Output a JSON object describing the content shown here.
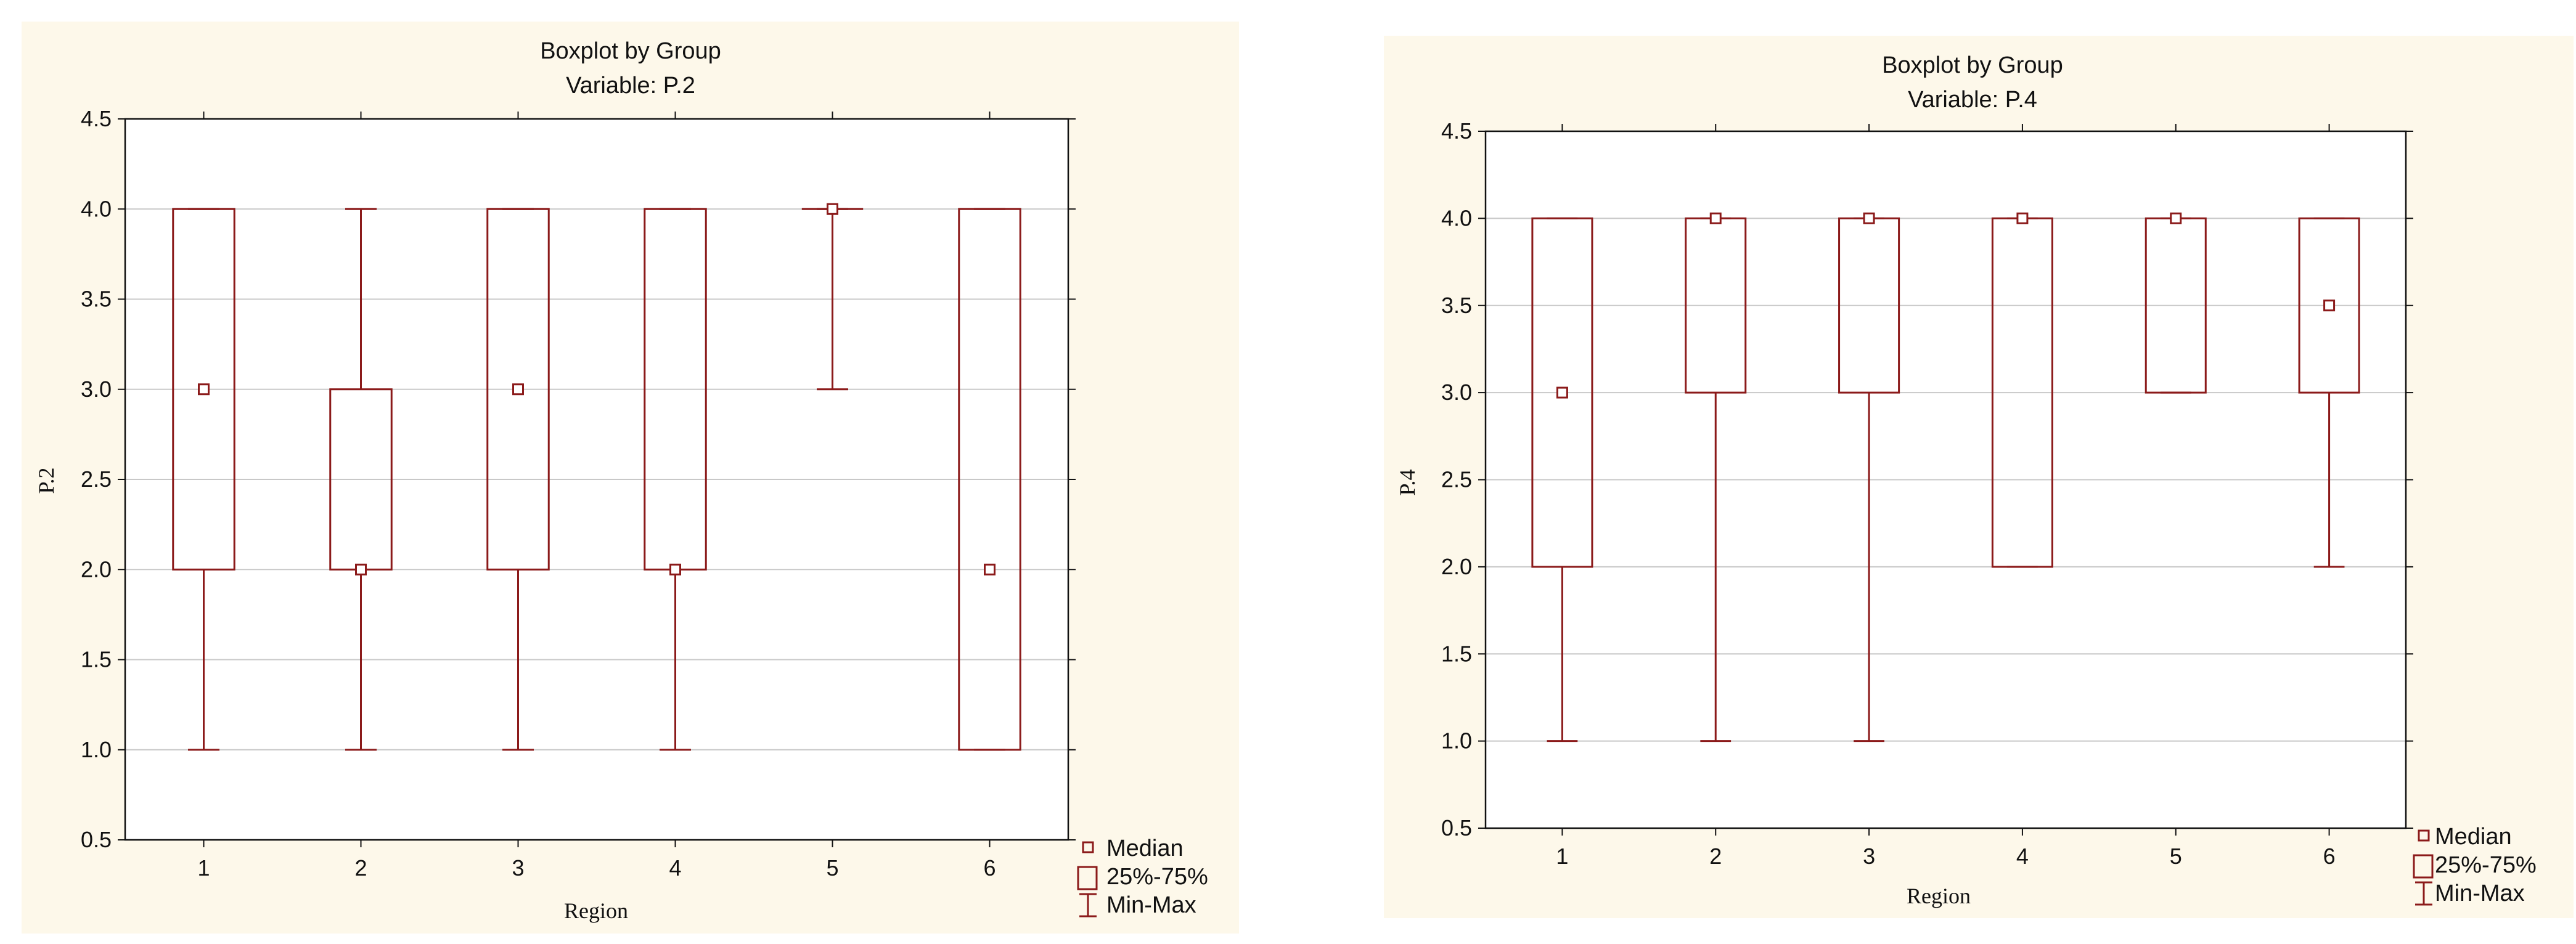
{
  "colors": {
    "mark": "#8b1a1a",
    "grid": "#c8c8c8",
    "plot_bg": "#ffffff",
    "panel_bg": "#fdf8ea"
  },
  "legend": {
    "median": "Median",
    "box": "25%-75%",
    "whisker": "Min-Max"
  },
  "chart_data": [
    {
      "type": "boxplot",
      "title": "Boxplot by Group",
      "subtitle": "Variable: P.2",
      "xlabel": "Region",
      "ylabel": "P.2",
      "ylim": [
        0.5,
        4.5
      ],
      "yticks": [
        "0.5",
        "1.0",
        "1.5",
        "2.0",
        "2.5",
        "3.0",
        "3.5",
        "4.0",
        "4.5"
      ],
      "categories": [
        "1",
        "2",
        "3",
        "4",
        "5",
        "6"
      ],
      "grid": true,
      "legend_position": "bottom-right outside",
      "boxes": [
        {
          "category": "1",
          "min": 1,
          "q1": 2,
          "median": 3,
          "q3": 4,
          "max": 4
        },
        {
          "category": "2",
          "min": 1,
          "q1": 2,
          "median": 2,
          "q3": 3,
          "max": 4
        },
        {
          "category": "3",
          "min": 1,
          "q1": 2,
          "median": 3,
          "q3": 4,
          "max": 4
        },
        {
          "category": "4",
          "min": 1,
          "q1": 2,
          "median": 2,
          "q3": 4,
          "max": 4
        },
        {
          "category": "5",
          "min": 3,
          "q1": 4,
          "median": 4,
          "q3": 4,
          "max": 4
        },
        {
          "category": "6",
          "min": 1,
          "q1": 1,
          "median": 2,
          "q3": 4,
          "max": 4
        }
      ]
    },
    {
      "type": "boxplot",
      "title": "Boxplot by Group",
      "subtitle": "Variable: P.4",
      "xlabel": "Region",
      "ylabel": "P.4",
      "ylim": [
        0.5,
        4.5
      ],
      "yticks": [
        "0.5",
        "1.0",
        "1.5",
        "2.0",
        "2.5",
        "3.0",
        "3.5",
        "4.0",
        "4.5"
      ],
      "categories": [
        "1",
        "2",
        "3",
        "4",
        "5",
        "6"
      ],
      "grid": true,
      "legend_position": "bottom-right outside",
      "boxes": [
        {
          "category": "1",
          "min": 1,
          "q1": 2,
          "median": 3,
          "q3": 4,
          "max": 4
        },
        {
          "category": "2",
          "min": 1,
          "q1": 3,
          "median": 4,
          "q3": 4,
          "max": 4
        },
        {
          "category": "3",
          "min": 1,
          "q1": 3,
          "median": 4,
          "q3": 4,
          "max": 4
        },
        {
          "category": "4",
          "min": 2,
          "q1": 2,
          "median": 4,
          "q3": 4,
          "max": 4
        },
        {
          "category": "5",
          "min": 3,
          "q1": 3,
          "median": 4,
          "q3": 4,
          "max": 4
        },
        {
          "category": "6",
          "min": 2,
          "q1": 3,
          "median": 3.5,
          "q3": 4,
          "max": 4
        }
      ]
    }
  ]
}
